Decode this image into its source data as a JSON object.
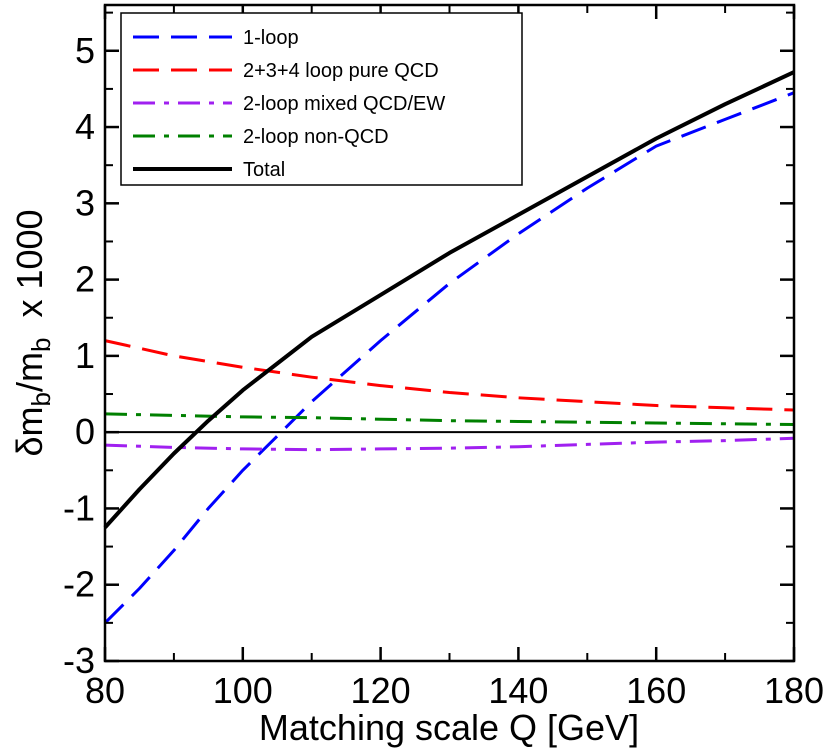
{
  "chart_data": {
    "type": "line",
    "title": "",
    "xlabel": "Matching scale Q  [GeV]",
    "ylabel": {
      "delta": "δ",
      "m1": "m",
      "sub1": "b",
      "slash": "/m",
      "sub2": "b",
      "suffix": "  x 1000"
    },
    "xlim": [
      80,
      180
    ],
    "ylim": [
      -3,
      5.6
    ],
    "xticks": [
      80,
      100,
      120,
      140,
      160,
      180
    ],
    "yticks": [
      -3,
      -2,
      -1,
      0,
      1,
      2,
      3,
      4,
      5
    ],
    "zero_line": true,
    "legend_position": "top-left",
    "series": [
      {
        "name": "1-loop",
        "color": "#0000ff",
        "style": "dashed",
        "x": [
          80,
          85,
          90,
          95,
          100,
          105,
          110,
          120,
          130,
          140,
          150,
          160,
          170,
          180
        ],
        "y": [
          -2.5,
          -2.05,
          -1.55,
          -1.0,
          -0.5,
          -0.05,
          0.4,
          1.2,
          1.95,
          2.6,
          3.2,
          3.75,
          4.1,
          4.45
        ]
      },
      {
        "name": "2+3+4 loop pure QCD",
        "color": "#ff0000",
        "style": "dashed",
        "x": [
          80,
          90,
          100,
          110,
          120,
          130,
          140,
          150,
          160,
          170,
          180
        ],
        "y": [
          1.2,
          1.0,
          0.85,
          0.72,
          0.61,
          0.52,
          0.45,
          0.4,
          0.35,
          0.32,
          0.29
        ]
      },
      {
        "name": "2-loop mixed QCD/EW",
        "color": "#a020f0",
        "style": "dashdot",
        "x": [
          80,
          90,
          100,
          110,
          120,
          130,
          140,
          150,
          160,
          170,
          180
        ],
        "y": [
          -0.17,
          -0.2,
          -0.22,
          -0.23,
          -0.22,
          -0.21,
          -0.19,
          -0.16,
          -0.13,
          -0.11,
          -0.08
        ]
      },
      {
        "name": "2-loop non-QCD",
        "color": "#008000",
        "style": "dashdot",
        "x": [
          80,
          90,
          100,
          110,
          120,
          130,
          140,
          150,
          160,
          170,
          180
        ],
        "y": [
          0.24,
          0.22,
          0.2,
          0.19,
          0.17,
          0.15,
          0.14,
          0.13,
          0.12,
          0.11,
          0.1
        ]
      },
      {
        "name": "Total",
        "color": "#000000",
        "style": "solid",
        "x": [
          80,
          85,
          90,
          95,
          100,
          105,
          110,
          120,
          130,
          140,
          150,
          160,
          170,
          180
        ],
        "y": [
          -1.25,
          -0.75,
          -0.28,
          0.15,
          0.55,
          0.9,
          1.25,
          1.8,
          2.35,
          2.85,
          3.35,
          3.85,
          4.3,
          4.72
        ]
      }
    ]
  }
}
